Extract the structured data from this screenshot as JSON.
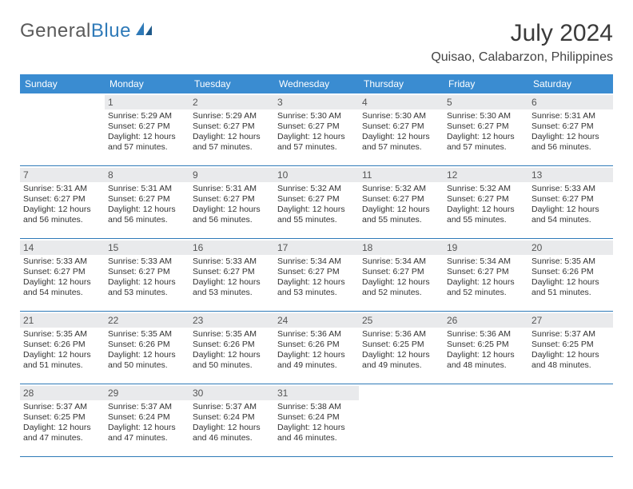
{
  "brand": {
    "part1": "General",
    "part2": "Blue"
  },
  "title": "July 2024",
  "location": "Quisao, Calabarzon, Philippines",
  "colors": {
    "header_bg": "#3a8cd1",
    "accent": "#2f7ab8",
    "daynum_bg": "#e9eaec",
    "text": "#333333"
  },
  "days_of_week": [
    "Sunday",
    "Monday",
    "Tuesday",
    "Wednesday",
    "Thursday",
    "Friday",
    "Saturday"
  ],
  "calendar": {
    "first_weekday_index": 1,
    "num_days": 31,
    "cells": {
      "1": {
        "sunrise": "Sunrise: 5:29 AM",
        "sunset": "Sunset: 6:27 PM",
        "daylight1": "Daylight: 12 hours",
        "daylight2": "and 57 minutes."
      },
      "2": {
        "sunrise": "Sunrise: 5:29 AM",
        "sunset": "Sunset: 6:27 PM",
        "daylight1": "Daylight: 12 hours",
        "daylight2": "and 57 minutes."
      },
      "3": {
        "sunrise": "Sunrise: 5:30 AM",
        "sunset": "Sunset: 6:27 PM",
        "daylight1": "Daylight: 12 hours",
        "daylight2": "and 57 minutes."
      },
      "4": {
        "sunrise": "Sunrise: 5:30 AM",
        "sunset": "Sunset: 6:27 PM",
        "daylight1": "Daylight: 12 hours",
        "daylight2": "and 57 minutes."
      },
      "5": {
        "sunrise": "Sunrise: 5:30 AM",
        "sunset": "Sunset: 6:27 PM",
        "daylight1": "Daylight: 12 hours",
        "daylight2": "and 57 minutes."
      },
      "6": {
        "sunrise": "Sunrise: 5:31 AM",
        "sunset": "Sunset: 6:27 PM",
        "daylight1": "Daylight: 12 hours",
        "daylight2": "and 56 minutes."
      },
      "7": {
        "sunrise": "Sunrise: 5:31 AM",
        "sunset": "Sunset: 6:27 PM",
        "daylight1": "Daylight: 12 hours",
        "daylight2": "and 56 minutes."
      },
      "8": {
        "sunrise": "Sunrise: 5:31 AM",
        "sunset": "Sunset: 6:27 PM",
        "daylight1": "Daylight: 12 hours",
        "daylight2": "and 56 minutes."
      },
      "9": {
        "sunrise": "Sunrise: 5:31 AM",
        "sunset": "Sunset: 6:27 PM",
        "daylight1": "Daylight: 12 hours",
        "daylight2": "and 56 minutes."
      },
      "10": {
        "sunrise": "Sunrise: 5:32 AM",
        "sunset": "Sunset: 6:27 PM",
        "daylight1": "Daylight: 12 hours",
        "daylight2": "and 55 minutes."
      },
      "11": {
        "sunrise": "Sunrise: 5:32 AM",
        "sunset": "Sunset: 6:27 PM",
        "daylight1": "Daylight: 12 hours",
        "daylight2": "and 55 minutes."
      },
      "12": {
        "sunrise": "Sunrise: 5:32 AM",
        "sunset": "Sunset: 6:27 PM",
        "daylight1": "Daylight: 12 hours",
        "daylight2": "and 55 minutes."
      },
      "13": {
        "sunrise": "Sunrise: 5:33 AM",
        "sunset": "Sunset: 6:27 PM",
        "daylight1": "Daylight: 12 hours",
        "daylight2": "and 54 minutes."
      },
      "14": {
        "sunrise": "Sunrise: 5:33 AM",
        "sunset": "Sunset: 6:27 PM",
        "daylight1": "Daylight: 12 hours",
        "daylight2": "and 54 minutes."
      },
      "15": {
        "sunrise": "Sunrise: 5:33 AM",
        "sunset": "Sunset: 6:27 PM",
        "daylight1": "Daylight: 12 hours",
        "daylight2": "and 53 minutes."
      },
      "16": {
        "sunrise": "Sunrise: 5:33 AM",
        "sunset": "Sunset: 6:27 PM",
        "daylight1": "Daylight: 12 hours",
        "daylight2": "and 53 minutes."
      },
      "17": {
        "sunrise": "Sunrise: 5:34 AM",
        "sunset": "Sunset: 6:27 PM",
        "daylight1": "Daylight: 12 hours",
        "daylight2": "and 53 minutes."
      },
      "18": {
        "sunrise": "Sunrise: 5:34 AM",
        "sunset": "Sunset: 6:27 PM",
        "daylight1": "Daylight: 12 hours",
        "daylight2": "and 52 minutes."
      },
      "19": {
        "sunrise": "Sunrise: 5:34 AM",
        "sunset": "Sunset: 6:27 PM",
        "daylight1": "Daylight: 12 hours",
        "daylight2": "and 52 minutes."
      },
      "20": {
        "sunrise": "Sunrise: 5:35 AM",
        "sunset": "Sunset: 6:26 PM",
        "daylight1": "Daylight: 12 hours",
        "daylight2": "and 51 minutes."
      },
      "21": {
        "sunrise": "Sunrise: 5:35 AM",
        "sunset": "Sunset: 6:26 PM",
        "daylight1": "Daylight: 12 hours",
        "daylight2": "and 51 minutes."
      },
      "22": {
        "sunrise": "Sunrise: 5:35 AM",
        "sunset": "Sunset: 6:26 PM",
        "daylight1": "Daylight: 12 hours",
        "daylight2": "and 50 minutes."
      },
      "23": {
        "sunrise": "Sunrise: 5:35 AM",
        "sunset": "Sunset: 6:26 PM",
        "daylight1": "Daylight: 12 hours",
        "daylight2": "and 50 minutes."
      },
      "24": {
        "sunrise": "Sunrise: 5:36 AM",
        "sunset": "Sunset: 6:26 PM",
        "daylight1": "Daylight: 12 hours",
        "daylight2": "and 49 minutes."
      },
      "25": {
        "sunrise": "Sunrise: 5:36 AM",
        "sunset": "Sunset: 6:25 PM",
        "daylight1": "Daylight: 12 hours",
        "daylight2": "and 49 minutes."
      },
      "26": {
        "sunrise": "Sunrise: 5:36 AM",
        "sunset": "Sunset: 6:25 PM",
        "daylight1": "Daylight: 12 hours",
        "daylight2": "and 48 minutes."
      },
      "27": {
        "sunrise": "Sunrise: 5:37 AM",
        "sunset": "Sunset: 6:25 PM",
        "daylight1": "Daylight: 12 hours",
        "daylight2": "and 48 minutes."
      },
      "28": {
        "sunrise": "Sunrise: 5:37 AM",
        "sunset": "Sunset: 6:25 PM",
        "daylight1": "Daylight: 12 hours",
        "daylight2": "and 47 minutes."
      },
      "29": {
        "sunrise": "Sunrise: 5:37 AM",
        "sunset": "Sunset: 6:24 PM",
        "daylight1": "Daylight: 12 hours",
        "daylight2": "and 47 minutes."
      },
      "30": {
        "sunrise": "Sunrise: 5:37 AM",
        "sunset": "Sunset: 6:24 PM",
        "daylight1": "Daylight: 12 hours",
        "daylight2": "and 46 minutes."
      },
      "31": {
        "sunrise": "Sunrise: 5:38 AM",
        "sunset": "Sunset: 6:24 PM",
        "daylight1": "Daylight: 12 hours",
        "daylight2": "and 46 minutes."
      }
    }
  }
}
